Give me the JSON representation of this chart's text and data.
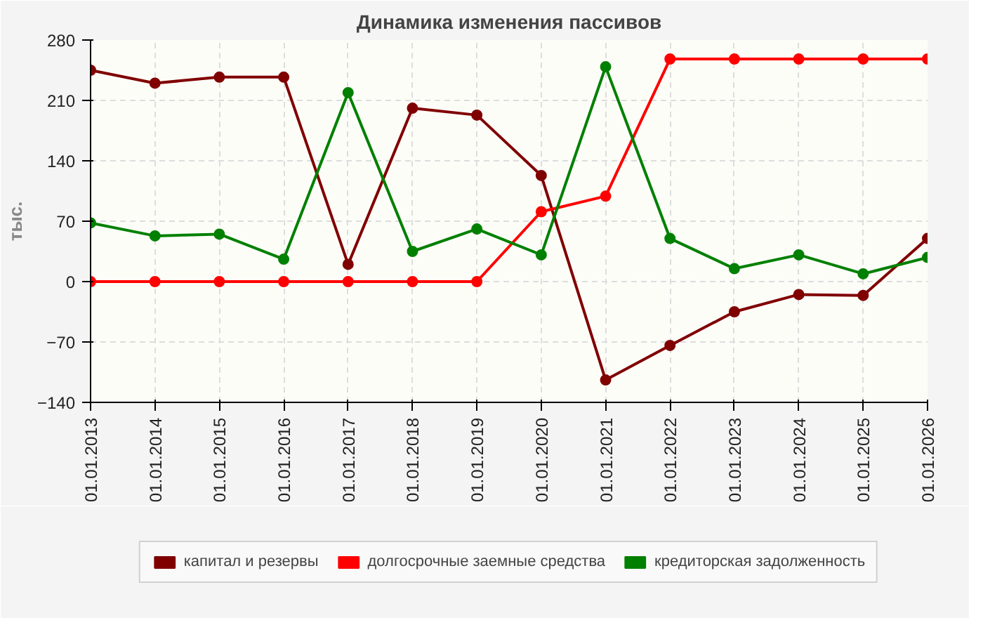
{
  "chart_data": {
    "type": "line",
    "title": "Динамика изменения пассивов",
    "ylabel": "тыс.",
    "categories": [
      "01.01.2013",
      "01.01.2014",
      "01.01.2015",
      "01.01.2016",
      "01.01.2017",
      "01.01.2018",
      "01.01.2019",
      "01.01.2020",
      "01.01.2021",
      "01.01.2022",
      "01.01.2023",
      "01.01.2024",
      "01.01.2025",
      "01.01.2026"
    ],
    "series": [
      {
        "name": "капитал и резервы",
        "color": "#800000",
        "values": [
          245,
          230,
          237,
          237,
          20,
          201,
          193,
          123,
          -114,
          -74,
          -35,
          -15,
          -16,
          50
        ]
      },
      {
        "name": "долгосрочные заемные средства",
        "color": "#ff0000",
        "values": [
          0,
          0,
          0,
          0,
          0,
          0,
          0,
          81,
          99,
          258,
          258,
          258,
          258,
          258
        ]
      },
      {
        "name": "кредиторская задолженность",
        "color": "#008000",
        "values": [
          68,
          53,
          55,
          26,
          219,
          35,
          61,
          31,
          249,
          50,
          15,
          31,
          9,
          28
        ]
      }
    ],
    "ylim": [
      -140,
      280
    ],
    "yticks": [
      -140,
      -70,
      0,
      70,
      140,
      210,
      280
    ],
    "grid": true,
    "legend": "bottom",
    "marker": "circle",
    "line_style": "solid"
  }
}
